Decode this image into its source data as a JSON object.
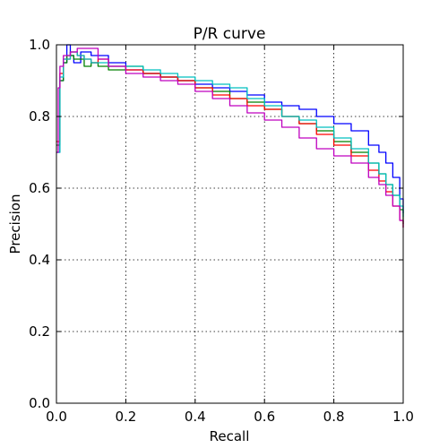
{
  "chart_data": {
    "type": "line",
    "title": "P/R curve",
    "xlabel": "Recall",
    "ylabel": "Precision",
    "xlim": [
      0.0,
      1.0
    ],
    "ylim": [
      0.0,
      1.0
    ],
    "x_ticks": [
      "0.0",
      "0.2",
      "0.4",
      "0.6",
      "0.8",
      "1.0"
    ],
    "y_ticks": [
      "0.0",
      "0.2",
      "0.4",
      "0.6",
      "0.8",
      "1.0"
    ],
    "grid": true,
    "legend": false,
    "series": [
      {
        "color": "#0000ff",
        "x": [
          0.0,
          0.01,
          0.02,
          0.03,
          0.04,
          0.05,
          0.07,
          0.1,
          0.15,
          0.2,
          0.25,
          0.3,
          0.35,
          0.4,
          0.45,
          0.5,
          0.55,
          0.6,
          0.65,
          0.7,
          0.75,
          0.8,
          0.85,
          0.9,
          0.93,
          0.95,
          0.97,
          0.99,
          1.0
        ],
        "y": [
          0.7,
          0.9,
          0.95,
          1.0,
          0.97,
          0.95,
          0.98,
          0.97,
          0.95,
          0.93,
          0.92,
          0.91,
          0.9,
          0.89,
          0.88,
          0.87,
          0.86,
          0.84,
          0.83,
          0.82,
          0.8,
          0.78,
          0.76,
          0.72,
          0.7,
          0.67,
          0.63,
          0.57,
          0.53
        ]
      },
      {
        "color": "#008000",
        "x": [
          0.0,
          0.01,
          0.02,
          0.03,
          0.05,
          0.08,
          0.1,
          0.12,
          0.15,
          0.2,
          0.25,
          0.3,
          0.35,
          0.4,
          0.45,
          0.5,
          0.55,
          0.6,
          0.65,
          0.7,
          0.75,
          0.8,
          0.85,
          0.9,
          0.93,
          0.95,
          0.97,
          0.99,
          1.0
        ],
        "y": [
          0.72,
          0.9,
          0.95,
          0.97,
          0.96,
          0.94,
          0.95,
          0.94,
          0.93,
          0.94,
          0.92,
          0.91,
          0.9,
          0.88,
          0.87,
          0.85,
          0.84,
          0.82,
          0.8,
          0.78,
          0.76,
          0.73,
          0.7,
          0.67,
          0.64,
          0.61,
          0.58,
          0.54,
          0.5
        ]
      },
      {
        "color": "#ff0000",
        "x": [
          0.0,
          0.01,
          0.02,
          0.04,
          0.06,
          0.08,
          0.1,
          0.12,
          0.15,
          0.2,
          0.25,
          0.3,
          0.35,
          0.4,
          0.45,
          0.5,
          0.55,
          0.6,
          0.65,
          0.7,
          0.75,
          0.8,
          0.85,
          0.9,
          0.93,
          0.95,
          0.97,
          0.99,
          1.0
        ],
        "y": [
          0.73,
          0.92,
          0.96,
          0.98,
          0.97,
          0.96,
          0.95,
          0.96,
          0.94,
          0.93,
          0.92,
          0.91,
          0.9,
          0.88,
          0.86,
          0.85,
          0.83,
          0.82,
          0.8,
          0.78,
          0.75,
          0.72,
          0.69,
          0.65,
          0.62,
          0.59,
          0.55,
          0.51,
          0.49
        ]
      },
      {
        "color": "#00bfbf",
        "x": [
          0.0,
          0.01,
          0.02,
          0.04,
          0.06,
          0.08,
          0.1,
          0.15,
          0.2,
          0.25,
          0.3,
          0.35,
          0.4,
          0.45,
          0.5,
          0.55,
          0.6,
          0.65,
          0.7,
          0.75,
          0.8,
          0.85,
          0.9,
          0.93,
          0.95,
          0.97,
          0.99,
          1.0
        ],
        "y": [
          0.7,
          0.91,
          0.96,
          0.98,
          0.97,
          0.96,
          0.95,
          0.94,
          0.94,
          0.93,
          0.92,
          0.91,
          0.9,
          0.89,
          0.88,
          0.85,
          0.83,
          0.8,
          0.79,
          0.77,
          0.74,
          0.71,
          0.67,
          0.64,
          0.61,
          0.58,
          0.55,
          0.52
        ]
      },
      {
        "color": "#bf00bf",
        "x": [
          0.0,
          0.005,
          0.01,
          0.02,
          0.04,
          0.06,
          0.08,
          0.1,
          0.12,
          0.15,
          0.2,
          0.25,
          0.3,
          0.35,
          0.4,
          0.45,
          0.5,
          0.55,
          0.6,
          0.65,
          0.7,
          0.75,
          0.8,
          0.85,
          0.9,
          0.93,
          0.95,
          0.97,
          0.99,
          1.0
        ],
        "y": [
          0.7,
          0.88,
          0.94,
          0.97,
          0.98,
          0.99,
          0.99,
          0.99,
          0.96,
          0.94,
          0.92,
          0.91,
          0.9,
          0.89,
          0.87,
          0.85,
          0.83,
          0.81,
          0.79,
          0.77,
          0.74,
          0.71,
          0.69,
          0.67,
          0.63,
          0.61,
          0.58,
          0.55,
          0.51,
          0.49
        ]
      }
    ]
  }
}
